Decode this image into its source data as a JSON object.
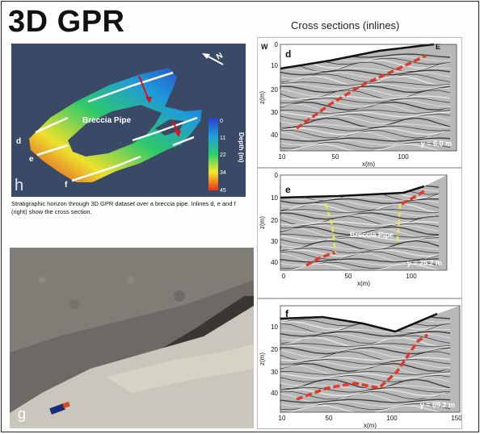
{
  "title": "3D GPR",
  "cross_sections_title": "Cross sections (inlines)",
  "map": {
    "label_breccia": "Breccia Pipe",
    "panel_letter": "h",
    "north": "N",
    "colorbar": {
      "title": "Depth (m)",
      "ticks": [
        "0",
        "11",
        "22",
        "34",
        "45"
      ],
      "colors": [
        "#2a3ccc",
        "#1e9ee0",
        "#2dcf6a",
        "#f6e82a",
        "#e8301c"
      ]
    },
    "inline_labels": [
      "d",
      "e",
      "f"
    ]
  },
  "caption": "Stratigraphic horizon through 3D GPR dataset over a breccia pipe. Inlines d, e and f (right) show the cross section.",
  "photo": {
    "panel_letter": "g"
  },
  "panels": [
    {
      "letter": "d",
      "dir_left": "W",
      "dir_right": "E",
      "y_label": "z(m)",
      "x_label": "x(m)",
      "y_ticks": [
        "0",
        "10",
        "20",
        "30",
        "40"
      ],
      "x_ticks": [
        "10",
        "50",
        "100"
      ],
      "position_label": "y = 6.0 m",
      "feature_label": ""
    },
    {
      "letter": "e",
      "y_label": "z(m)",
      "x_label": "x(m)",
      "y_ticks": [
        "0",
        "10",
        "20",
        "30",
        "40"
      ],
      "x_ticks": [
        "0",
        "50",
        "100"
      ],
      "position_label": "y = 25.2 m",
      "feature_label": "Breccia Pipe"
    },
    {
      "letter": "f",
      "y_label": "z(m)",
      "x_label": "x(m)",
      "y_ticks": [
        "10",
        "20",
        "30",
        "40"
      ],
      "x_ticks": [
        "10",
        "50",
        "100",
        "150"
      ],
      "position_label": "y = 69.2 m",
      "feature_label": ""
    }
  ]
}
